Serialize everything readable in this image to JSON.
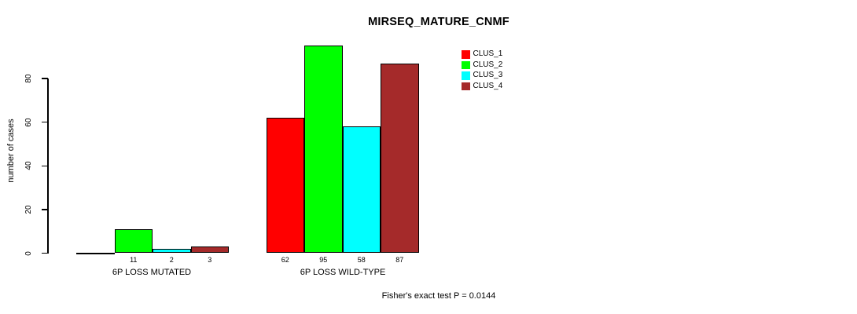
{
  "chart_data": {
    "type": "bar",
    "title": "MIRSEQ_MATURE_CNMF",
    "ylabel": "number of cases",
    "xlabel": "",
    "yticks": [
      "0",
      "20",
      "40",
      "60",
      "80"
    ],
    "ylim": [
      0,
      97
    ],
    "grid": false,
    "legend_position": "top-right",
    "categories": [
      "6P LOSS MUTATED",
      "6P LOSS WILD-TYPE"
    ],
    "series": [
      {
        "name": "CLUS_1",
        "color": "#FF0000",
        "values": [
          0,
          62
        ]
      },
      {
        "name": "CLUS_2",
        "color": "#00FF00",
        "values": [
          11,
          95
        ]
      },
      {
        "name": "CLUS_3",
        "color": "#00FFFF",
        "values": [
          2,
          58
        ]
      },
      {
        "name": "CLUS_4",
        "color": "#A52A2A",
        "values": [
          3,
          87
        ]
      }
    ],
    "bar_value_labels_shown": true,
    "zero_value_labels_hidden": true,
    "annotation": "Fisher's exact test P = 0.0144",
    "colors": {
      "background": "#FFFFFF",
      "axis": "#000000",
      "text": "#000000"
    }
  }
}
